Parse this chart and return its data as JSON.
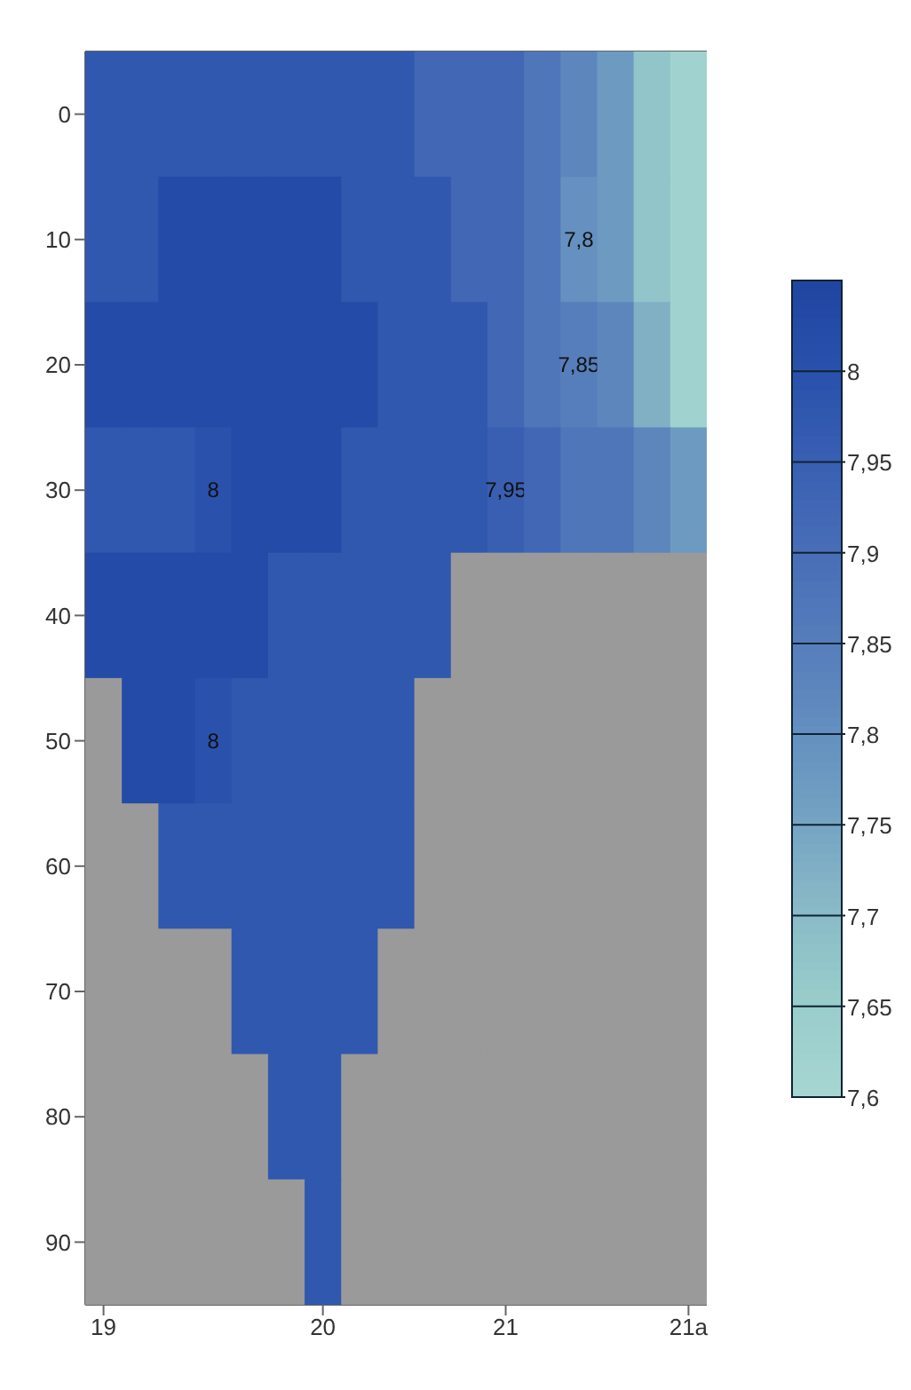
{
  "chart_data": {
    "type": "heatmap",
    "categories": [
      "19",
      null,
      null,
      null,
      null,
      null,
      "20",
      null,
      null,
      null,
      null,
      "21",
      null,
      null,
      null,
      null,
      "21a"
    ],
    "y_categories": [
      "0",
      "10",
      "20",
      "30",
      "40",
      "50",
      "60",
      "70",
      "80",
      "90"
    ],
    "cells": [
      [
        7.975,
        7.975,
        7.975,
        7.975,
        7.975,
        7.975,
        7.975,
        7.975,
        7.975,
        7.925,
        7.925,
        7.925,
        7.875,
        7.825,
        7.775,
        7.675,
        7.625
      ],
      [
        7.975,
        7.975,
        8.025,
        8.025,
        8.025,
        8.025,
        8.025,
        7.975,
        7.975,
        7.975,
        7.925,
        7.925,
        7.875,
        7.8,
        7.775,
        7.675,
        7.625
      ],
      [
        8.025,
        8.025,
        8.025,
        8.025,
        8.025,
        8.025,
        8.025,
        8.025,
        7.975,
        7.975,
        7.975,
        7.925,
        7.875,
        7.85,
        7.825,
        7.725,
        7.625
      ],
      [
        7.975,
        7.975,
        7.975,
        8,
        8.025,
        8.025,
        8.025,
        7.975,
        7.975,
        7.975,
        7.975,
        7.95,
        7.925,
        7.875,
        7.875,
        7.825,
        7.775
      ],
      [
        8.025,
        8.025,
        8.025,
        8.025,
        8.025,
        7.975,
        7.975,
        7.975,
        7.975,
        7.975,
        null,
        null,
        null,
        null,
        null,
        null,
        null
      ],
      [
        null,
        8.025,
        8.025,
        8,
        7.975,
        7.975,
        7.975,
        7.975,
        7.975,
        null,
        null,
        null,
        null,
        null,
        null,
        null,
        null
      ],
      [
        null,
        null,
        7.975,
        7.975,
        7.975,
        7.975,
        7.975,
        7.975,
        7.975,
        null,
        null,
        null,
        null,
        null,
        null,
        null,
        null
      ],
      [
        null,
        null,
        null,
        null,
        7.975,
        7.975,
        7.975,
        7.975,
        null,
        null,
        null,
        null,
        null,
        null,
        null,
        null,
        null
      ],
      [
        null,
        null,
        null,
        null,
        null,
        7.975,
        7.975,
        null,
        null,
        null,
        null,
        null,
        null,
        null,
        null,
        null,
        null
      ],
      [
        null,
        null,
        null,
        null,
        null,
        null,
        7.975,
        null,
        null,
        null,
        null,
        null,
        null,
        null,
        null,
        null,
        null
      ]
    ],
    "cell_labels": [
      [
        null,
        null,
        null,
        null,
        null,
        null,
        null,
        null,
        null,
        null,
        null,
        null,
        null,
        null,
        null,
        null,
        null
      ],
      [
        null,
        null,
        null,
        null,
        null,
        null,
        null,
        null,
        null,
        null,
        null,
        null,
        null,
        "7,8",
        null,
        null,
        null
      ],
      [
        null,
        null,
        null,
        null,
        null,
        null,
        null,
        null,
        null,
        null,
        null,
        null,
        null,
        "7,85",
        null,
        null,
        null
      ],
      [
        null,
        null,
        null,
        "8",
        null,
        null,
        null,
        null,
        null,
        null,
        null,
        "7,95",
        null,
        null,
        null,
        null,
        null
      ],
      [
        null,
        null,
        null,
        null,
        null,
        null,
        null,
        null,
        null,
        null,
        null,
        null,
        null,
        null,
        null,
        null,
        null
      ],
      [
        null,
        null,
        null,
        "8",
        null,
        null,
        null,
        null,
        null,
        null,
        null,
        null,
        null,
        null,
        null,
        null,
        null
      ],
      [
        null,
        null,
        null,
        null,
        null,
        null,
        null,
        null,
        null,
        null,
        null,
        null,
        null,
        null,
        null,
        null,
        null
      ],
      [
        null,
        null,
        null,
        null,
        null,
        null,
        null,
        null,
        null,
        null,
        null,
        null,
        null,
        null,
        null,
        null,
        null
      ],
      [
        null,
        null,
        null,
        null,
        null,
        null,
        null,
        null,
        null,
        null,
        null,
        null,
        null,
        null,
        null,
        null,
        null
      ],
      [
        null,
        null,
        null,
        null,
        null,
        null,
        null,
        null,
        null,
        null,
        null,
        null,
        null,
        null,
        null,
        null,
        null
      ]
    ],
    "clim": [
      7.6,
      8.05
    ],
    "cticks": [
      {
        "value": 7.6,
        "label": "7,6"
      },
      {
        "value": 7.65,
        "label": "7,65"
      },
      {
        "value": 7.7,
        "label": "7,7"
      },
      {
        "value": 7.75,
        "label": "7,75"
      },
      {
        "value": 7.8,
        "label": "7,8"
      },
      {
        "value": 7.85,
        "label": "7,85"
      },
      {
        "value": 7.9,
        "label": "7,9"
      },
      {
        "value": 7.95,
        "label": "7,95"
      },
      {
        "value": 8,
        "label": "8"
      }
    ],
    "colors": [
      "#a6d6d2",
      "#98cccb",
      "#86b6c6",
      "#6e9cc2",
      "#5d86bd",
      "#4d74b9",
      "#3d63b4",
      "#2b53ad",
      "#1f45a2"
    ]
  }
}
